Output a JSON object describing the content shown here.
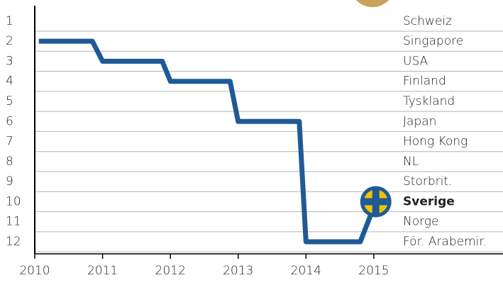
{
  "chart_data": {
    "type": "line",
    "x": [
      2010.06,
      2010.85,
      2011.0,
      2011.88,
      2012.0,
      2012.88,
      2013.0,
      2013.9,
      2014.0,
      2014.8,
      2015.03
    ],
    "values": [
      2,
      2,
      3,
      3,
      4,
      4,
      6,
      6,
      12,
      12,
      10
    ],
    "color": "#1f5a96",
    "xlim": [
      2010,
      2015.2
    ],
    "xticks": [
      2010,
      2011,
      2012,
      2013,
      2014,
      2015
    ],
    "ylim": [
      0.3,
      12.6
    ],
    "y_inverted": true,
    "yticks": [
      1,
      2,
      3,
      4,
      5,
      6,
      7,
      8,
      9,
      10,
      11,
      12
    ],
    "rank_labels": [
      "Schweiz",
      "Singapore",
      "USA",
      "Finland",
      "Tyskland",
      "Japan",
      "Hong Kong",
      "NL",
      "Storbrit.",
      "Sverige",
      "Norge",
      "För. Arabemir."
    ],
    "bold_label": "Sverige",
    "grid": true
  }
}
